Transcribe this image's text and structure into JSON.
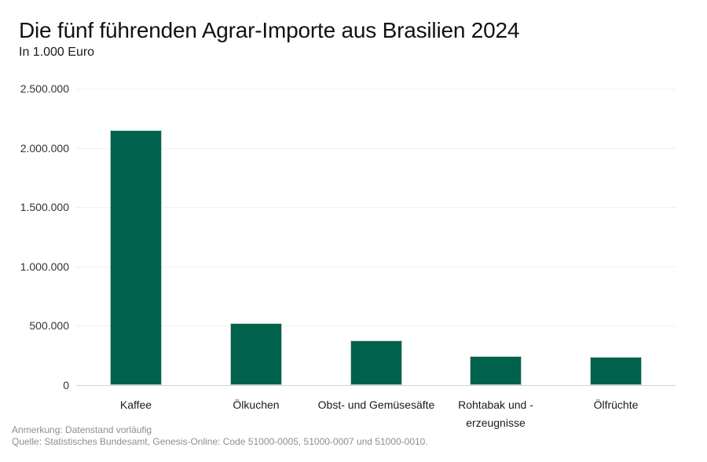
{
  "header": {
    "title": "Die fünf führenden Agrar-Importe aus Brasilien 2024",
    "subtitle": "In 1.000 Euro"
  },
  "chart_data": {
    "type": "bar",
    "title": "Die fünf führenden Agrar-Importe aus Brasilien 2024",
    "subtitle": "In 1.000 Euro",
    "unit": "1.000 Euro",
    "categories": [
      "Kaffee",
      "Ölkuchen",
      "Obst- und Gemüsesäfte",
      "Rohtabak und -erzeugnisse",
      "Ölfrüchte"
    ],
    "category_labels": [
      "Kaffee",
      "Ölkuchen",
      "Obst- und Gemüsesäfte",
      "Rohtabak und -\nerzeugnisse",
      "Ölfrüchte"
    ],
    "values": [
      2150000,
      520000,
      380000,
      245000,
      240000
    ],
    "xlabel": "",
    "ylabel": "",
    "ylim": [
      0,
      2500000
    ],
    "yticks": [
      0,
      500000,
      1000000,
      1500000,
      2000000,
      2500000
    ],
    "ytick_labels": [
      "0",
      "500.000",
      "1.000.000",
      "1.500.000",
      "2.000.000",
      "2.500.000"
    ],
    "grid": "horizontal-dotted",
    "legend": "none",
    "bar_color": "#00614C"
  },
  "footer": {
    "note": "Anmerkung: Datenstand vorläufig",
    "source": "Quelle: Statistisches Bundesamt, Genesis-Online: Code 51000-0005, 51000-0007 und 51000-0010."
  },
  "colors": {
    "bar": "#00614C",
    "bar_border": "#D2E0DB",
    "grid": "#E3E3E3",
    "axis_line": "#D4D4D4",
    "title_text": "#121212",
    "tick_text": "#333333",
    "footer_text": "#8E8E8E"
  }
}
